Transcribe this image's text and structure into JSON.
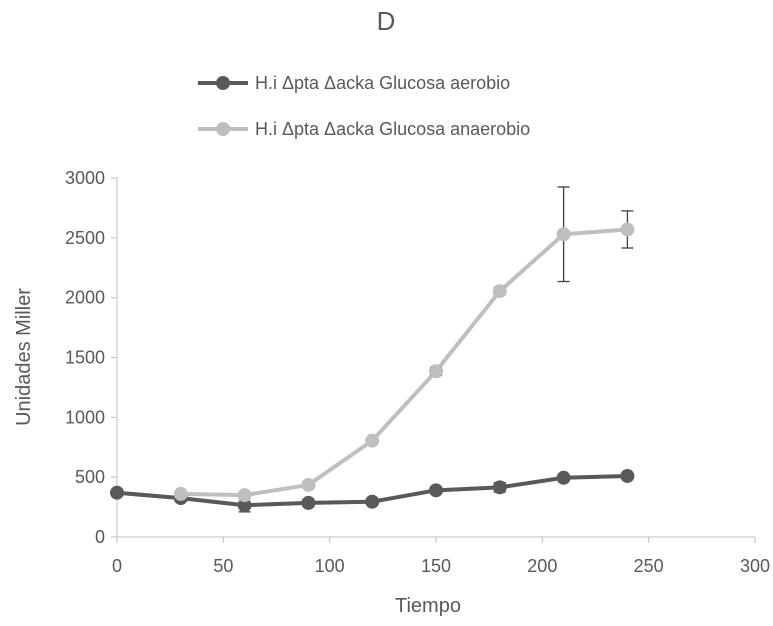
{
  "chart_data": {
    "type": "scatter",
    "title": "D",
    "xlabel": "Tiempo",
    "ylabel": "Unidades Miller",
    "xlim": [
      0,
      300
    ],
    "ylim": [
      0,
      3000
    ],
    "xticks": [
      0,
      50,
      100,
      150,
      200,
      250,
      300
    ],
    "yticks": [
      0,
      500,
      1000,
      1500,
      2000,
      2500,
      3000
    ],
    "grid": false,
    "legend_position": "top",
    "series": [
      {
        "name": "H.i Δpta Δacka Glucosa aerobio",
        "color": "#595959",
        "x": [
          0,
          30,
          60,
          90,
          120,
          150,
          180,
          210,
          240
        ],
        "y": [
          370,
          325,
          265,
          285,
          295,
          390,
          415,
          495,
          510
        ],
        "err": [
          10,
          20,
          55,
          30,
          10,
          25,
          40,
          20,
          20
        ]
      },
      {
        "name": "H.i Δpta Δacka Glucosa anaerobio",
        "color": "#bfbfbf",
        "x": [
          30,
          60,
          90,
          120,
          150,
          180,
          210,
          240
        ],
        "y": [
          360,
          350,
          435,
          805,
          1385,
          2055,
          2530,
          2570
        ],
        "err": [
          10,
          10,
          15,
          20,
          35,
          30,
          395,
          155
        ]
      }
    ]
  }
}
